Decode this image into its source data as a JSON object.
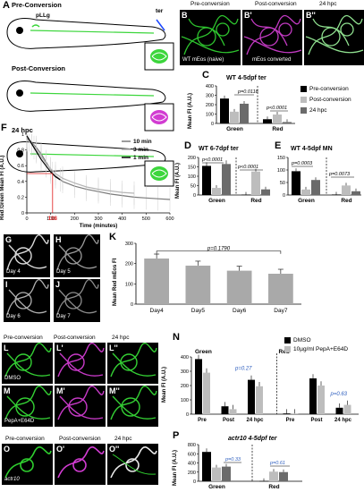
{
  "panelA": {
    "letter": "A",
    "stages": [
      "Pre-Conversion",
      "Post-Conversion",
      "24 hpc"
    ],
    "pllg": "pLLg",
    "ter": "ter"
  },
  "panelB": {
    "letters": [
      "B",
      "B'",
      "B''"
    ],
    "titles": [
      "Pre-conversion",
      "Post-conversion",
      "24 hpc"
    ],
    "captions": [
      "WT  mEos (naive)",
      "mEos converted"
    ]
  },
  "colors": {
    "green": "#3cd63c",
    "magenta": "#d23cd2",
    "black": "#000000",
    "lightgray": "#bdbdbd",
    "darkgray": "#6b6b6b"
  },
  "legendC": [
    "Pre-conversion",
    "Post-conversion",
    "24 hpc"
  ],
  "chartC": {
    "letter": "C",
    "title": "WT 4-5dpf ter",
    "ylabel": "Mean FI (A.U.)",
    "groups": [
      "Green",
      "Red"
    ],
    "yticks": [
      "400",
      "300",
      "200",
      "100",
      "0"
    ],
    "pvals": [
      "p=0.0118",
      "p<0.0001"
    ]
  },
  "chartD": {
    "letter": "D",
    "title": "WT 6-7dpf ter",
    "ylabel": "Mean FI (A.U.)",
    "groups": [
      "Green",
      "Red"
    ],
    "yticks": [
      "200",
      "150",
      "100",
      "50",
      "0"
    ],
    "pvals": [
      "p<0.0001",
      "p<0.0001"
    ]
  },
  "chartE": {
    "letter": "E",
    "title": "WT 4-5dpf MN",
    "groups": [
      "Green",
      "Red"
    ],
    "yticks": [
      "150",
      "100",
      "50",
      "0"
    ],
    "pvals": [
      "p=0.0003",
      "p=0.0073"
    ]
  },
  "chartF": {
    "letter": "F",
    "ylabel": "Red:Green Mean FI (A.U.)",
    "xlabel": "Time (minutes)",
    "marker": "108",
    "xticks": [
      "0",
      "100",
      "200",
      "300",
      "400",
      "500",
      "600"
    ],
    "yticks": [
      "1",
      "0.8",
      "0.6",
      "0.4",
      "0.2",
      "0"
    ],
    "legend": [
      "10 min",
      "3 min",
      "1 min"
    ]
  },
  "panelsGJ": {
    "letters": [
      "G",
      "H",
      "I",
      "J"
    ],
    "days": [
      "Day 4",
      "Day 5",
      "Day 6",
      "Day 7"
    ]
  },
  "chartK": {
    "letter": "K",
    "ylabel": "Mean Red mEos FI",
    "categories": [
      "Day4",
      "Day5",
      "Day6",
      "Day7"
    ],
    "yticks": [
      "300",
      "200",
      "100",
      "0"
    ],
    "pval": "p=0.1790"
  },
  "panelsLM": {
    "letters": [
      "L",
      "L'",
      "L''",
      "M",
      "M'",
      "M''"
    ],
    "titles": [
      "Pre-conversion",
      "Post-conversion",
      "24 hpc"
    ],
    "captions": [
      "DMSO",
      "PepA+E64D"
    ]
  },
  "chartN": {
    "letter": "N",
    "ylabel": "Mean FI (A.U.)",
    "groups": [
      "Green",
      "Red"
    ],
    "xcats": [
      "Pre",
      "Post",
      "24 hpc",
      "Pre",
      "Post",
      "24 hpc"
    ],
    "yticks": [
      "400",
      "300",
      "200",
      "100",
      "0"
    ],
    "legend": [
      "DMSO",
      "10µg/ml PepA+E64D"
    ],
    "pvals": [
      "p=0.27",
      "p=0.63"
    ]
  },
  "panelsO": {
    "letters": [
      "O",
      "O'",
      "O''"
    ],
    "titles": [
      "Pre-conversion",
      "Post-conversion",
      "24 hpc"
    ],
    "caption": "actr10"
  },
  "chartP": {
    "letter": "P",
    "title": "actr10 4-5dpf ter",
    "ylabel": "Mean FI (A.U.)",
    "groups": [
      "Green",
      "Red"
    ],
    "yticks": [
      "800",
      "600",
      "400",
      "200",
      "0"
    ],
    "pvals": [
      "p=0.33",
      "p=0.61"
    ]
  },
  "chart_data": [
    {
      "type": "bar",
      "panel": "C",
      "title": "WT 4-5dpf ter",
      "categories": [
        "Green",
        "Red"
      ],
      "series": [
        {
          "name": "Pre-conversion",
          "values": [
            265,
            45
          ]
        },
        {
          "name": "Post-conversion",
          "values": [
            125,
            95
          ]
        },
        {
          "name": "24 hpc",
          "values": [
            210,
            15
          ]
        }
      ],
      "ylabel": "Mean FI (A.U.)",
      "ylim": [
        0,
        400
      ]
    },
    {
      "type": "bar",
      "panel": "D",
      "title": "WT 6-7dpf ter",
      "categories": [
        "Green",
        "Red"
      ],
      "series": [
        {
          "name": "Pre-conversion",
          "values": [
            155,
            2
          ]
        },
        {
          "name": "Post-conversion",
          "values": [
            38,
            125
          ]
        },
        {
          "name": "24 hpc",
          "values": [
            165,
            30
          ]
        }
      ],
      "ylabel": "Mean FI (A.U.)",
      "ylim": [
        0,
        200
      ]
    },
    {
      "type": "bar",
      "panel": "E",
      "title": "WT 4-5dpf MN",
      "categories": [
        "Green",
        "Red"
      ],
      "series": [
        {
          "name": "Pre-conversion",
          "values": [
            95,
            2
          ]
        },
        {
          "name": "Post-conversion",
          "values": [
            22,
            38
          ]
        },
        {
          "name": "24 hpc",
          "values": [
            60,
            15
          ]
        }
      ],
      "ylim": [
        0,
        150
      ]
    },
    {
      "type": "line",
      "panel": "F",
      "xlabel": "Time (minutes)",
      "ylabel": "Red:Green Mean FI (A.U.)",
      "xlim": [
        0,
        600
      ],
      "ylim": [
        0,
        1
      ],
      "series": [
        {
          "name": "10 min",
          "x": [
            0,
            20,
            40,
            60,
            80,
            100,
            108,
            150,
            200,
            250,
            300,
            350,
            400,
            450,
            500,
            550,
            600
          ],
          "y": [
            0.95,
            0.9,
            0.83,
            0.75,
            0.65,
            0.55,
            0.5,
            0.4,
            0.34,
            0.3,
            0.27,
            0.24,
            0.22,
            0.2,
            0.19,
            0.18,
            0.17
          ]
        },
        {
          "name": "3 min",
          "x": [
            0,
            20,
            40,
            60,
            80,
            100,
            120,
            150,
            200,
            250,
            300,
            350,
            400,
            450
          ],
          "y": [
            0.93,
            0.88,
            0.8,
            0.72,
            0.63,
            0.56,
            0.5,
            0.44,
            0.38,
            0.33,
            0.3,
            0.28,
            0.26,
            0.25
          ]
        },
        {
          "name": "1 min",
          "x": [
            0,
            10,
            20,
            30,
            40,
            60,
            80,
            100,
            120,
            140
          ],
          "y": [
            0.98,
            0.93,
            0.88,
            0.83,
            0.78,
            0.68,
            0.6,
            0.52,
            0.46,
            0.42
          ]
        }
      ]
    },
    {
      "type": "bar",
      "panel": "K",
      "categories": [
        "Day4",
        "Day5",
        "Day6",
        "Day7"
      ],
      "values": [
        225,
        190,
        165,
        150
      ],
      "ylabel": "Mean Red mEos FI",
      "ylim": [
        0,
        300
      ]
    },
    {
      "type": "bar",
      "panel": "N",
      "categories": [
        "Green Pre",
        "Green Post",
        "Green 24 hpc",
        "Red Pre",
        "Red Post",
        "Red 24 hpc"
      ],
      "series": [
        {
          "name": "DMSO",
          "values": [
            385,
            55,
            240,
            5,
            250,
            45
          ]
        },
        {
          "name": "10µg/ml PepA+E64D",
          "values": [
            290,
            35,
            195,
            5,
            200,
            65
          ]
        }
      ],
      "ylabel": "Mean FI (A.U.)",
      "ylim": [
        0,
        400
      ]
    },
    {
      "type": "bar",
      "panel": "P",
      "title": "actr10 4-5dpf ter",
      "categories": [
        "Green",
        "Red"
      ],
      "series": [
        {
          "name": "Pre-conversion",
          "values": [
            640,
            5
          ]
        },
        {
          "name": "Post-conversion",
          "values": [
            300,
            210
          ]
        },
        {
          "name": "24 hpc",
          "values": [
            320,
            200
          ]
        }
      ],
      "ylabel": "Mean FI (A.U.)",
      "ylim": [
        0,
        800
      ]
    }
  ]
}
